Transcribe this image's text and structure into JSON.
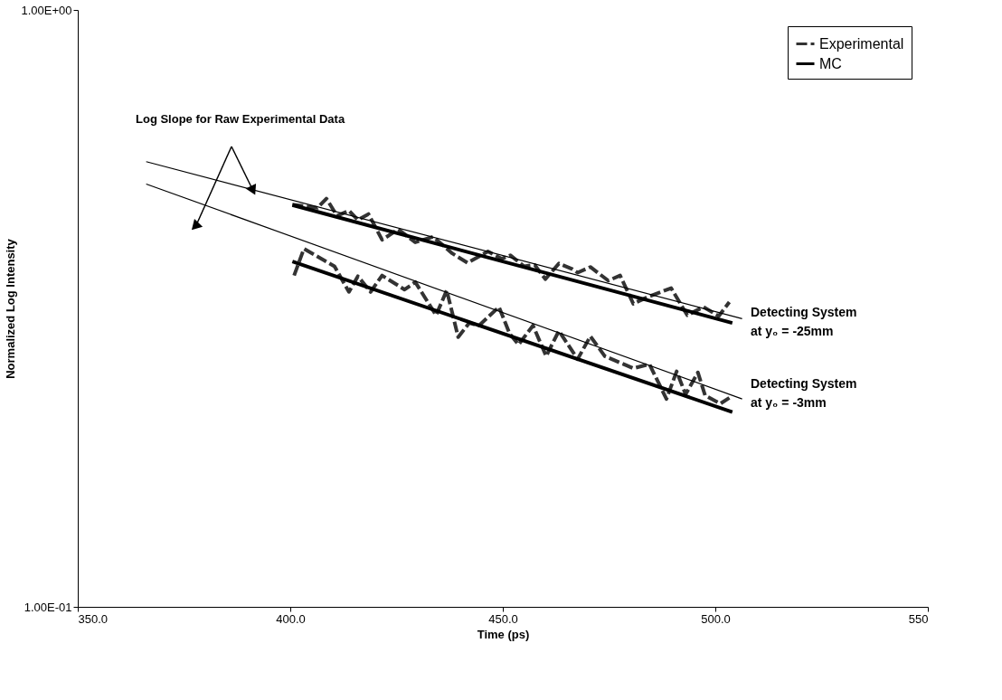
{
  "chart_data": {
    "type": "line",
    "xlabel": "Time (ps)",
    "ylabel": "Normalized Log Intensity",
    "annotations": [
      "Log Slope for Raw Experimental Data",
      "Detecting System\nat y₀ = -25mm",
      "Detecting System\nat y₀ = -3mm"
    ],
    "log": "y",
    "xlim": [
      350,
      550
    ],
    "ylim": [
      0.1,
      1
    ],
    "xticks": [
      {
        "value": 350,
        "label": "350.0"
      },
      {
        "value": 400,
        "label": "400.0"
      },
      {
        "value": 450,
        "label": "450.0"
      },
      {
        "value": 500,
        "label": "500.0"
      },
      550
    ],
    "yticks": [
      {
        "value": 0.1,
        "label": "1.00E-01"
      },
      {
        "value": 1,
        "label": "1.00E+00"
      }
    ],
    "grid": false,
    "legend": "top right",
    "marker": "none",
    "series": [
      {
        "name": "Experimental",
        "color": "#333333",
        "line_style": "dashed",
        "x": [
          400.5,
          406.4,
          408.5,
          411.0,
          413.8,
          415.9,
          418.4,
          421.6,
          425.4,
          429.4,
          433.6,
          438.1,
          441.7,
          446.5,
          449.7,
          451.8,
          455.0,
          457.5,
          460.0,
          463.2,
          466.4,
          467.6,
          470.6,
          474.8,
          477.6,
          480.7,
          483.9,
          489.6,
          493.4,
          497.2,
          500.8,
          503.3
        ],
        "values": [
          0.472,
          0.466,
          0.483,
          0.452,
          0.461,
          0.445,
          0.455,
          0.412,
          0.429,
          0.408,
          0.417,
          0.391,
          0.377,
          0.394,
          0.383,
          0.388,
          0.372,
          0.374,
          0.354,
          0.376,
          0.368,
          0.363,
          0.371,
          0.352,
          0.359,
          0.322,
          0.33,
          0.342,
          0.308,
          0.318,
          0.307,
          0.324
        ]
      },
      {
        "color": "#333333",
        "line_style": "dashed",
        "x": [
          400.9,
          403.2,
          410.4,
          413.8,
          415.9,
          418.9,
          421.6,
          426.9,
          429.4,
          434.3,
          436.8,
          438.1,
          439.5,
          442.1,
          444.4,
          449.1,
          451.6,
          453.7,
          457.1,
          460.2,
          463.2,
          467.6,
          470.6,
          474.0,
          480.7,
          484.5,
          488.5,
          490.9,
          493.0,
          495.9,
          497.6,
          501.2,
          503.3
        ],
        "values": [
          0.359,
          0.398,
          0.372,
          0.337,
          0.358,
          0.337,
          0.359,
          0.34,
          0.35,
          0.308,
          0.339,
          0.311,
          0.283,
          0.299,
          0.296,
          0.318,
          0.287,
          0.275,
          0.296,
          0.263,
          0.29,
          0.26,
          0.284,
          0.263,
          0.251,
          0.255,
          0.223,
          0.248,
          0.227,
          0.247,
          0.226,
          0.219,
          0.224
        ]
      },
      {
        "name": "MC",
        "color": "#000000",
        "line_style": "solid",
        "x": [
          400.5,
          504.0
        ],
        "values": [
          0.471,
          0.299
        ]
      },
      {
        "color": "#000000",
        "line_style": "solid",
        "x": [
          400.5,
          504.0
        ],
        "values": [
          0.379,
          0.212
        ]
      },
      {
        "color": "#000000",
        "line_style": "solid",
        "x": [
          366.1,
          506.3
        ],
        "values": [
          0.557,
          0.304
        ]
      },
      {
        "color": "#000000",
        "line_style": "solid",
        "x": [
          366.1,
          506.3
        ],
        "values": [
          0.511,
          0.223
        ]
      }
    ]
  }
}
